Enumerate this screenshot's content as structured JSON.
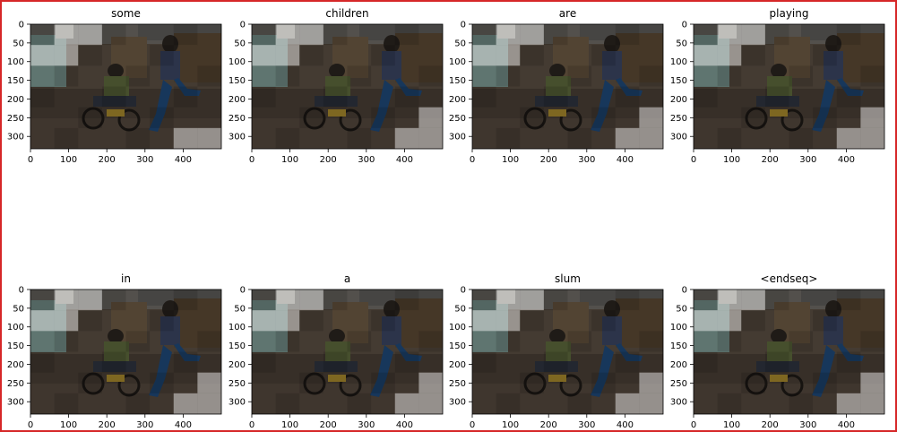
{
  "colors": {
    "frame": "#d62728",
    "axis": "#000000",
    "background": "#ffffff"
  },
  "chart_data": {
    "type": "heatmap",
    "description_kind": "attention-overlay grid of photo panels",
    "xlim": [
      0,
      500
    ],
    "ylim": [
      333,
      0
    ],
    "xticks": [
      0,
      100,
      200,
      300,
      400
    ],
    "yticks": [
      0,
      50,
      100,
      150,
      200,
      250,
      300
    ],
    "panels": [
      {
        "title": "some",
        "hot": [
          [
            0,
            1
          ],
          [
            0,
            2
          ],
          [
            1,
            0
          ],
          [
            1,
            1
          ],
          [
            5,
            7
          ],
          [
            5,
            6
          ]
        ]
      },
      {
        "title": "children",
        "hot": [
          [
            0,
            1
          ],
          [
            0,
            2
          ],
          [
            1,
            0
          ],
          [
            1,
            1
          ],
          [
            5,
            7
          ],
          [
            4,
            7
          ],
          [
            5,
            6
          ]
        ]
      },
      {
        "title": "are",
        "hot": [
          [
            0,
            1
          ],
          [
            0,
            2
          ],
          [
            1,
            0
          ],
          [
            1,
            1
          ],
          [
            5,
            7
          ],
          [
            4,
            7
          ],
          [
            5,
            6
          ]
        ]
      },
      {
        "title": "playing",
        "hot": [
          [
            0,
            1
          ],
          [
            0,
            2
          ],
          [
            1,
            0
          ],
          [
            1,
            1
          ],
          [
            5,
            7
          ],
          [
            4,
            7
          ],
          [
            5,
            6
          ]
        ]
      },
      {
        "title": "in",
        "hot": [
          [
            0,
            1
          ],
          [
            0,
            2
          ],
          [
            1,
            0
          ],
          [
            1,
            1
          ],
          [
            5,
            7
          ],
          [
            4,
            7
          ],
          [
            5,
            6
          ]
        ]
      },
      {
        "title": "a",
        "hot": [
          [
            0,
            1
          ],
          [
            0,
            2
          ],
          [
            1,
            0
          ],
          [
            1,
            1
          ],
          [
            5,
            7
          ],
          [
            4,
            7
          ],
          [
            5,
            6
          ]
        ]
      },
      {
        "title": "slum",
        "hot": [
          [
            0,
            1
          ],
          [
            0,
            2
          ],
          [
            1,
            0
          ],
          [
            1,
            1
          ],
          [
            5,
            7
          ],
          [
            4,
            7
          ],
          [
            5,
            6
          ]
        ]
      },
      {
        "title": "<endseq>",
        "hot": [
          [
            0,
            1
          ],
          [
            0,
            2
          ],
          [
            1,
            0
          ],
          [
            1,
            1
          ],
          [
            5,
            7
          ],
          [
            4,
            7
          ],
          [
            5,
            6
          ]
        ]
      }
    ]
  }
}
